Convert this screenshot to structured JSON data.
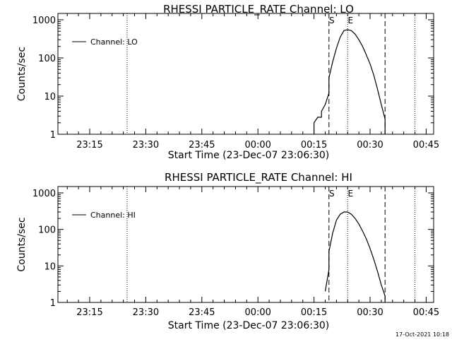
{
  "footer": {
    "timestamp": "17-Oct-2021 10:18"
  },
  "chart_data": [
    {
      "type": "line",
      "title": "RHESSI PARTICLE_RATE Channel: LO",
      "xlabel": "Start Time (23-Dec-07 23:06:30)",
      "ylabel": "Counts/sec",
      "y_scale": "log",
      "ylim": [
        1,
        1000
      ],
      "x_ticks": [
        "23:15",
        "23:30",
        "23:45",
        "00:00",
        "00:15",
        "00:30",
        "00:45"
      ],
      "y_ticks": [
        "1",
        "10",
        "100",
        "1000"
      ],
      "legend": {
        "position": "top-left",
        "entries": [
          "Channel: LO"
        ]
      },
      "markers": [
        {
          "label": "S",
          "time": "00:19",
          "style": "dashed"
        },
        {
          "label": "E",
          "time": "00:24",
          "style": "dotted"
        }
      ],
      "extra_lines": [
        {
          "time": "23:25",
          "style": "dotted"
        },
        {
          "time": "00:34",
          "style": "dashed"
        },
        {
          "time": "00:42",
          "style": "dotted"
        }
      ],
      "series": [
        {
          "name": "Channel: LO",
          "points": [
            [
              "00:15",
              1
            ],
            [
              "00:15",
              2
            ],
            [
              "00:16",
              2.8
            ],
            [
              "00:17",
              2.8
            ],
            [
              "00:17",
              4
            ],
            [
              "00:18",
              6
            ],
            [
              "00:19",
              12
            ],
            [
              "00:19",
              30
            ],
            [
              "00:20",
              80
            ],
            [
              "00:21",
              180
            ],
            [
              "00:22",
              350
            ],
            [
              "00:23",
              520
            ],
            [
              "00:24",
              550
            ],
            [
              "00:25",
              520
            ],
            [
              "00:26",
              420
            ],
            [
              "00:27",
              300
            ],
            [
              "00:28",
              200
            ],
            [
              "00:29",
              120
            ],
            [
              "00:30",
              70
            ],
            [
              "00:31",
              35
            ],
            [
              "00:32",
              15
            ],
            [
              "00:33",
              6
            ],
            [
              "00:34",
              2.5
            ],
            [
              "00:34",
              1
            ]
          ]
        }
      ]
    },
    {
      "type": "line",
      "title": "RHESSI PARTICLE_RATE Channel: HI",
      "xlabel": "Start Time (23-Dec-07 23:06:30)",
      "ylabel": "Counts/sec",
      "y_scale": "log",
      "ylim": [
        1,
        1000
      ],
      "x_ticks": [
        "23:15",
        "23:30",
        "23:45",
        "00:00",
        "00:15",
        "00:30",
        "00:45"
      ],
      "y_ticks": [
        "1",
        "10",
        "100",
        "1000"
      ],
      "legend": {
        "position": "top-left",
        "entries": [
          "Channel: HI"
        ]
      },
      "markers": [
        {
          "label": "S",
          "time": "00:19",
          "style": "dashed"
        },
        {
          "label": "E",
          "time": "00:24",
          "style": "dotted"
        }
      ],
      "extra_lines": [
        {
          "time": "23:25",
          "style": "dotted"
        },
        {
          "time": "00:34",
          "style": "dashed"
        },
        {
          "time": "00:42",
          "style": "dotted"
        }
      ],
      "series": [
        {
          "name": "Channel: HI",
          "points": [
            [
              "00:18",
              2
            ],
            [
              "00:19",
              8
            ],
            [
              "00:19",
              25
            ],
            [
              "00:20",
              80
            ],
            [
              "00:21",
              180
            ],
            [
              "00:22",
              260
            ],
            [
              "00:23",
              300
            ],
            [
              "00:24",
              300
            ],
            [
              "00:25",
              260
            ],
            [
              "00:26",
              200
            ],
            [
              "00:27",
              140
            ],
            [
              "00:28",
              90
            ],
            [
              "00:29",
              55
            ],
            [
              "00:30",
              30
            ],
            [
              "00:31",
              15
            ],
            [
              "00:32",
              7
            ],
            [
              "00:33",
              3
            ],
            [
              "00:34",
              1.5
            ],
            [
              "00:34",
              1
            ]
          ]
        }
      ]
    }
  ]
}
